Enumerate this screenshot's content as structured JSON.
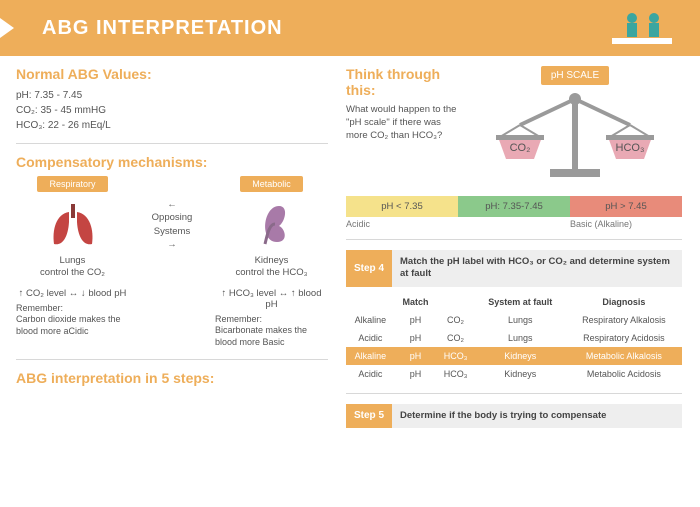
{
  "colors": {
    "accent": "#eeae5a",
    "bg": "#ffffff",
    "text": "#555555",
    "sep": "#d8d8d8",
    "grey": "#eeeeee",
    "acidic": "#f5e28b",
    "normal": "#8bc98b",
    "basic": "#e88b7a",
    "lungs": "#c44542",
    "kidney": "#a87aa8",
    "scale_grey": "#9a9a9a",
    "teal": "#3aa6a0"
  },
  "header": {
    "title": "ABG INTERPRETATION"
  },
  "normal": {
    "title": "Normal ABG Values:",
    "lines": [
      "pH: 7.35 - 7.45",
      "CO₂: 35 - 45 mmHG",
      "HCO₃: 22 - 26 mEq/L"
    ]
  },
  "comp": {
    "title": "Compensatory mechanisms:",
    "resp": {
      "pill": "Respiratory",
      "organ_label_1": "Lungs",
      "organ_label_2": "control the CO₂",
      "arrows": "↑ CO₂ level ↔ ↓ blood pH",
      "remember_title": "Remember:",
      "remember": "Carbon dioxide makes the blood more aCidic"
    },
    "mid": {
      "line1": "Opposing",
      "line2": "Systems"
    },
    "met": {
      "pill": "Metabolic",
      "organ_label_1": "Kidneys",
      "organ_label_2": "control the HCO₃",
      "arrows": "↑ HCO₃ level ↔ ↑ blood pH",
      "remember_title": "Remember:",
      "remember": "Bicarbonate makes the blood more Basic"
    }
  },
  "steps_title": "ABG interpretation in 5 steps:",
  "think": {
    "title": "Think through this:",
    "text": "What would happen to the \"pH scale\" if there was more CO₂ than HCO₃?",
    "scale_title": "pH SCALE",
    "left_pan": "CO₂",
    "right_pan": "HCO₃",
    "ph": [
      {
        "label": "pH < 7.35",
        "bg": "#f5e28b",
        "sub": "Acidic"
      },
      {
        "label": "pH: 7.35-7.45",
        "bg": "#8bc98b",
        "sub": ""
      },
      {
        "label": "pH > 7.45",
        "bg": "#e88b7a",
        "sub": "Basic (Alkaline)"
      }
    ]
  },
  "step4": {
    "badge": "Step 4",
    "text": "Match the pH label with HCO₃ or CO₂ and determine system at fault",
    "headers": [
      "",
      "Match",
      "",
      "System at fault",
      "Diagnosis"
    ],
    "rows": [
      {
        "c": [
          "Alkaline",
          "pH",
          "CO₂",
          "Lungs",
          "Respiratory Alkalosis"
        ],
        "hl": false
      },
      {
        "c": [
          "Acidic",
          "pH",
          "CO₂",
          "Lungs",
          "Respiratory Acidosis"
        ],
        "hl": false
      },
      {
        "c": [
          "Alkaline",
          "pH",
          "HCO₃",
          "Kidneys",
          "Metabolic Alkalosis"
        ],
        "hl": true
      },
      {
        "c": [
          "Acidic",
          "pH",
          "HCO₃",
          "Kidneys",
          "Metabolic Acidosis"
        ],
        "hl": false
      }
    ]
  },
  "step5": {
    "badge": "Step 5",
    "text": "Determine if the body is trying to compensate"
  }
}
